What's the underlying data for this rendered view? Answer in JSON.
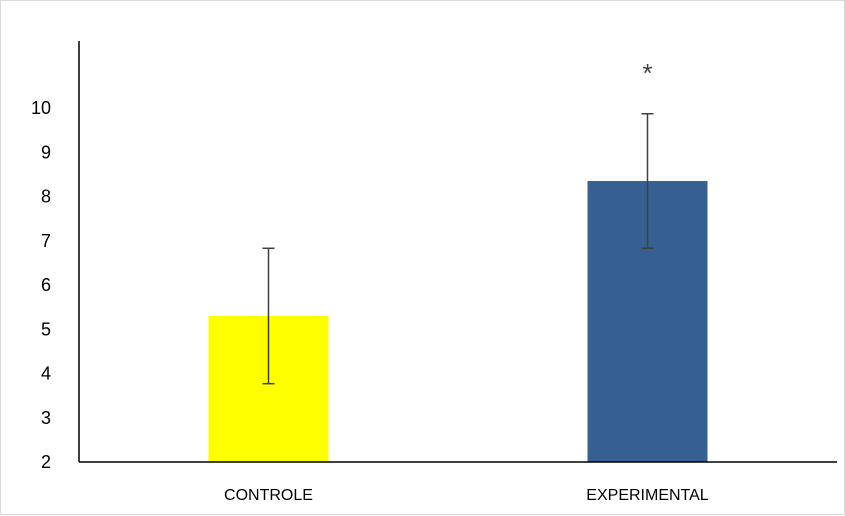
{
  "chart_data": {
    "type": "bar",
    "categories": [
      "CONTROLE",
      "EXPERIMENTAL"
    ],
    "values": [
      5.3,
      8.35
    ],
    "error": [
      1.53,
      1.52
    ],
    "colors": [
      "#ffff00",
      "#376092"
    ],
    "error_color": "#404040",
    "annotations": [
      "",
      "*"
    ],
    "ylim": [
      2,
      11
    ],
    "yticks": [
      2,
      3,
      4,
      5,
      6,
      7,
      8,
      9,
      10
    ],
    "grid": false,
    "title": "",
    "xlabel": "",
    "ylabel": ""
  }
}
